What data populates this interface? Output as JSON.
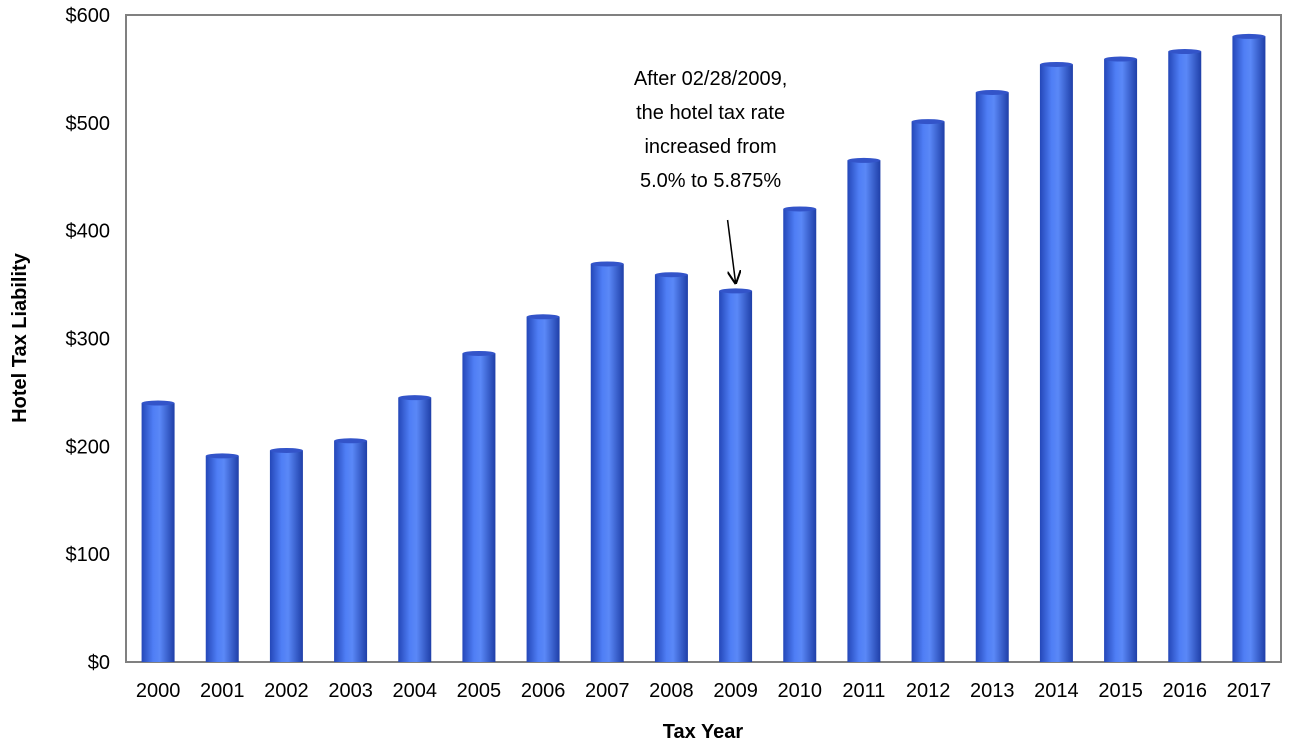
{
  "chart_data": {
    "type": "bar",
    "title": "",
    "xlabel": "Tax Year",
    "ylabel": "Hotel Tax Liability",
    "categories": [
      "2000",
      "2001",
      "2002",
      "2003",
      "2004",
      "2005",
      "2006",
      "2007",
      "2008",
      "2009",
      "2010",
      "2011",
      "2012",
      "2013",
      "2014",
      "2015",
      "2016",
      "2017"
    ],
    "values": [
      242,
      193,
      198,
      207,
      247,
      288,
      322,
      371,
      361,
      346,
      422,
      467,
      503,
      530,
      556,
      561,
      568,
      582
    ],
    "ylim": [
      0,
      600
    ],
    "yticks": [
      0,
      100,
      200,
      300,
      400,
      500,
      600
    ],
    "ytick_labels": [
      "$0",
      "$100",
      "$200",
      "$300",
      "$400",
      "$500",
      "$600"
    ],
    "grid": false,
    "legend": "none",
    "bar_color": "#3a66e8",
    "annotation": {
      "lines": [
        "After 02/28/2009,",
        "the hotel tax rate",
        "increased from",
        "5.0% to 5.875%"
      ],
      "target_category": "2009"
    }
  }
}
